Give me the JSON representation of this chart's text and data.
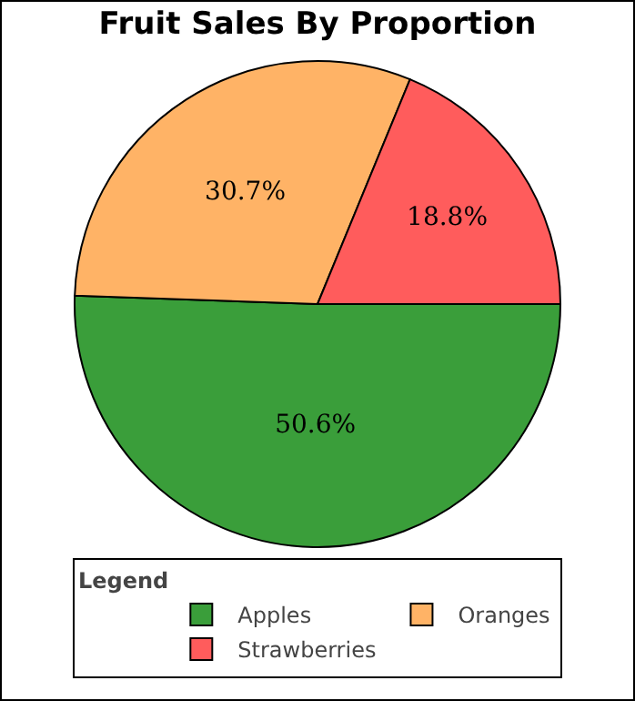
{
  "chart_data": {
    "type": "pie",
    "title": "Fruit Sales By Proportion",
    "legend_title": "Legend",
    "legend": "bottom",
    "categories": [
      "Apples",
      "Oranges",
      "Strawberries"
    ],
    "values": [
      50.6,
      30.7,
      18.8
    ],
    "value_labels": [
      "50.6%",
      "30.7%",
      "18.8%"
    ],
    "colors": [
      "#3a9e3a",
      "#ffb366",
      "#ff5c5c"
    ]
  }
}
